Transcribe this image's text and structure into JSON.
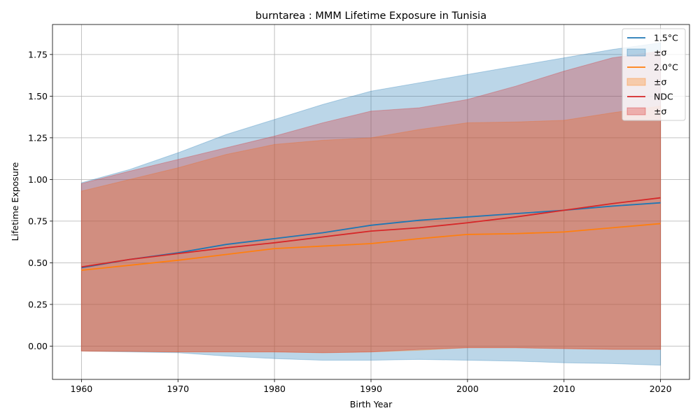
{
  "chart_data": {
    "type": "line",
    "title": "burntarea : MMM Lifetime Exposure in Tunisia",
    "xlabel": "Birth Year",
    "ylabel": "Lifetime Exposure",
    "xlim": [
      1957,
      2023
    ],
    "ylim": [
      -0.2,
      1.93
    ],
    "xticks": [
      1960,
      1970,
      1980,
      1990,
      2000,
      2010,
      2020
    ],
    "yticks": [
      0.0,
      0.25,
      0.5,
      0.75,
      1.0,
      1.25,
      1.5,
      1.75
    ],
    "ytick_labels": [
      "0.00",
      "0.25",
      "0.50",
      "0.75",
      "1.00",
      "1.25",
      "1.50",
      "1.75"
    ],
    "grid": true,
    "legend_position": "top-right",
    "x": [
      1960,
      1965,
      1970,
      1975,
      1980,
      1985,
      1990,
      1995,
      2000,
      2005,
      2010,
      2015,
      2020
    ],
    "series": [
      {
        "name": "1.5°C",
        "band_label": "±σ",
        "color": "#1f77b4",
        "values": [
          0.47,
          0.52,
          0.56,
          0.61,
          0.645,
          0.68,
          0.725,
          0.755,
          0.775,
          0.795,
          0.815,
          0.84,
          0.86
        ],
        "upper": [
          0.98,
          1.06,
          1.16,
          1.27,
          1.36,
          1.45,
          1.53,
          1.58,
          1.63,
          1.68,
          1.73,
          1.78,
          1.82
        ],
        "lower": [
          -0.03,
          -0.035,
          -0.04,
          -0.06,
          -0.075,
          -0.085,
          -0.085,
          -0.08,
          -0.085,
          -0.09,
          -0.1,
          -0.105,
          -0.115
        ]
      },
      {
        "name": "2.0°C",
        "band_label": "±σ",
        "color": "#ff7f0e",
        "values": [
          0.455,
          0.485,
          0.515,
          0.55,
          0.585,
          0.6,
          0.615,
          0.645,
          0.67,
          0.675,
          0.685,
          0.71,
          0.735
        ],
        "upper": [
          0.93,
          1.0,
          1.07,
          1.15,
          1.21,
          1.235,
          1.25,
          1.3,
          1.34,
          1.345,
          1.355,
          1.4,
          1.44
        ],
        "lower": [
          -0.03,
          -0.032,
          -0.035,
          -0.035,
          -0.035,
          -0.04,
          -0.035,
          -0.025,
          -0.01,
          -0.01,
          -0.015,
          -0.02,
          -0.02
        ]
      },
      {
        "name": "NDC",
        "band_label": "±σ",
        "color": "#d62728",
        "values": [
          0.475,
          0.52,
          0.555,
          0.59,
          0.62,
          0.655,
          0.69,
          0.71,
          0.74,
          0.775,
          0.815,
          0.855,
          0.89
        ],
        "upper": [
          0.975,
          1.05,
          1.12,
          1.19,
          1.26,
          1.34,
          1.41,
          1.43,
          1.48,
          1.56,
          1.65,
          1.73,
          1.77
        ],
        "lower": [
          -0.03,
          -0.032,
          -0.035,
          -0.035,
          -0.035,
          -0.04,
          -0.035,
          -0.02,
          -0.01,
          -0.01,
          -0.015,
          -0.02,
          -0.02
        ]
      }
    ]
  }
}
